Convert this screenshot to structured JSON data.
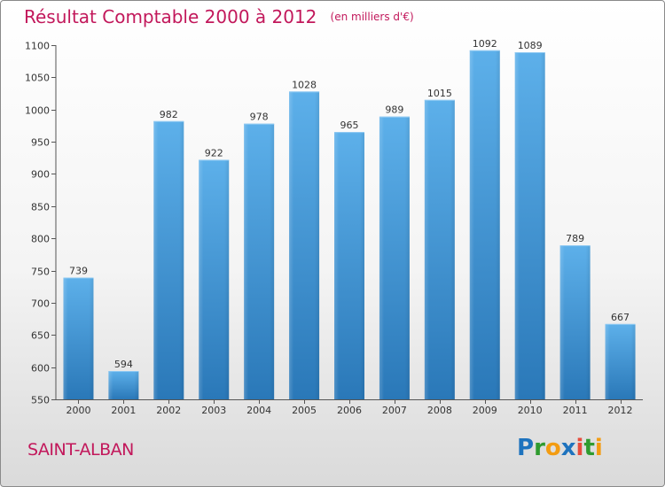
{
  "header": {
    "title": "Résultat Comptable 2000 à 2012",
    "subtitle": "(en milliers d'€)"
  },
  "footer": {
    "place": "SAINT-ALBAN",
    "logo": "Proxiti"
  },
  "colors": {
    "accent": "#c2185b",
    "bar_top": "#5db0ea",
    "bar_bottom": "#2a78b8",
    "axis": "#555555"
  },
  "chart_data": {
    "type": "bar",
    "title": "Résultat Comptable 2000 à 2012",
    "subtitle": "(en milliers d'€)",
    "xlabel": "",
    "ylabel": "",
    "categories": [
      "2000",
      "2001",
      "2002",
      "2003",
      "2004",
      "2005",
      "2006",
      "2007",
      "2008",
      "2009",
      "2010",
      "2011",
      "2012"
    ],
    "values": [
      739,
      594,
      982,
      922,
      978,
      1028,
      965,
      989,
      1015,
      1092,
      1089,
      789,
      667
    ],
    "ylim": [
      550,
      1100
    ],
    "yticks": [
      550,
      600,
      650,
      700,
      750,
      800,
      850,
      900,
      950,
      1000,
      1050,
      1100
    ],
    "grid": false,
    "legend": "none"
  }
}
